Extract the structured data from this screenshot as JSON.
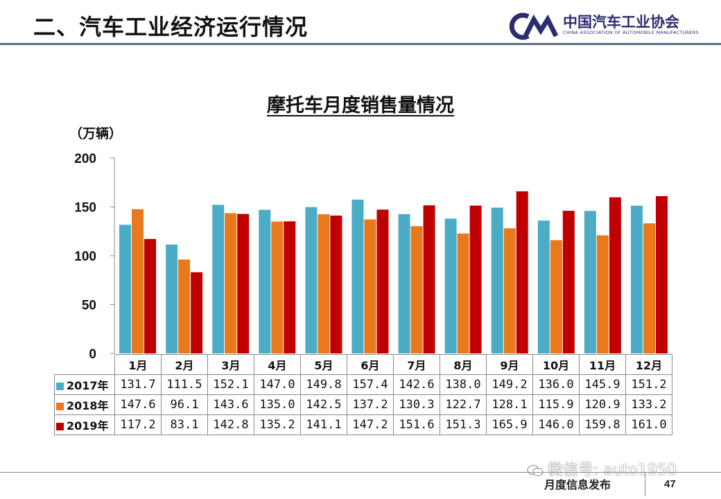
{
  "header": {
    "title": "二、汽车工业经济运行情况",
    "logo_text_cn": "中国汽车工业协会",
    "logo_text_en": "CHINA ASSOCIATION OF AUTOMOBILE MANUFACTURERS",
    "line_color": "#5b6e8a"
  },
  "chart_data": {
    "type": "bar",
    "title": "摩托车月度销售量情况",
    "unit": "（万辆）",
    "xlabel": "",
    "ylabel": "",
    "ylim": [
      0,
      200
    ],
    "yticks": [
      "0",
      "50",
      "100",
      "150",
      "200"
    ],
    "grid": false,
    "categories": [
      "1月",
      "2月",
      "3月",
      "4月",
      "5月",
      "6月",
      "7月",
      "8月",
      "9月",
      "10月",
      "11月",
      "12月"
    ],
    "series": [
      {
        "name": "2017年",
        "color": "#4bacc6",
        "values": [
          131.7,
          111.5,
          152.1,
          147.0,
          149.8,
          157.4,
          142.6,
          138.0,
          149.2,
          136.0,
          145.9,
          151.2
        ],
        "labels": [
          "131.7",
          "111.5",
          "152.1",
          "147.0",
          "149.8",
          "157.4",
          "142.6",
          "138.0",
          "149.2",
          "136.0",
          "145.9",
          "151.2"
        ]
      },
      {
        "name": "2018年",
        "color": "#e8791d",
        "values": [
          147.6,
          96.1,
          143.6,
          135.0,
          142.5,
          137.2,
          130.3,
          122.7,
          128.1,
          115.9,
          120.9,
          133.2
        ],
        "labels": [
          "147.6",
          "96.1",
          "143.6",
          "135.0",
          "142.5",
          "137.2",
          "130.3",
          "122.7",
          "128.1",
          "115.9",
          "120.9",
          "133.2"
        ]
      },
      {
        "name": "2019年",
        "color": "#c00000",
        "values": [
          117.2,
          83.1,
          142.8,
          135.2,
          141.1,
          147.2,
          151.6,
          151.3,
          165.9,
          146.0,
          159.8,
          161.0
        ],
        "labels": [
          "117.2",
          "83.1",
          "142.8",
          "135.2",
          "141.1",
          "147.2",
          "151.6",
          "151.3",
          "165.9",
          "146.0",
          "159.8",
          "161.0"
        ]
      }
    ]
  },
  "footer": {
    "label": "月度信息发布",
    "page_number": "47",
    "watermark": "微信号: auto1950"
  }
}
